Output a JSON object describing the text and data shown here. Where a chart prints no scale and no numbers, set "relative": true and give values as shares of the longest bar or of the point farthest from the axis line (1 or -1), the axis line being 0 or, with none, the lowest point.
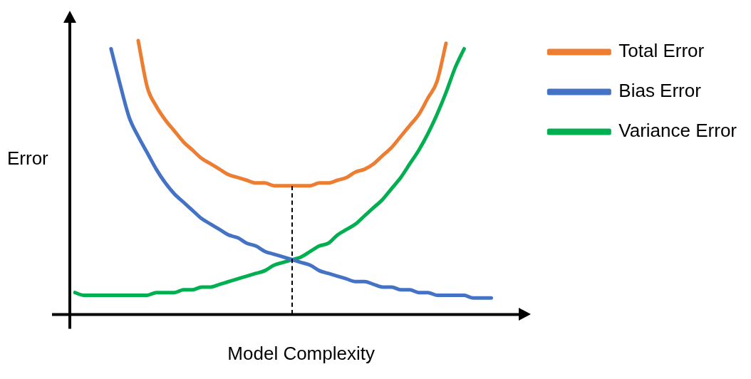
{
  "chart_data": {
    "type": "line",
    "relative": true,
    "xlabel": "Model Complexity",
    "ylabel": "Error",
    "legend": "top right",
    "grid": false,
    "marker": "none",
    "categories": [
      null,
      null,
      null,
      null,
      null,
      null,
      null,
      null,
      null,
      null,
      null,
      null,
      null,
      null,
      null,
      null,
      null,
      null,
      null,
      null,
      null,
      null,
      null,
      null,
      null,
      null,
      null,
      null,
      null,
      null,
      null,
      null,
      null,
      null,
      null,
      null,
      null,
      null,
      null,
      null,
      null,
      null,
      null,
      null,
      null,
      null,
      null,
      null,
      null,
      null,
      null
    ],
    "series": [
      {
        "name": "Total Error",
        "color": "#ed7d31",
        "values": [
          null,
          null,
          null,
          null,
          null,
          null,
          null,
          1.0,
          0.83,
          0.76,
          0.71,
          0.67,
          0.63,
          0.6,
          0.57,
          0.55,
          0.53,
          0.51,
          0.5,
          0.49,
          0.48,
          0.48,
          0.47,
          0.47,
          0.47,
          0.47,
          0.47,
          0.48,
          0.48,
          0.49,
          0.5,
          0.52,
          0.53,
          0.55,
          0.58,
          0.61,
          0.65,
          0.69,
          0.73,
          0.79,
          0.85,
          0.99,
          null,
          null,
          null,
          null,
          null,
          null,
          null,
          null,
          null
        ]
      },
      {
        "name": "Bias Error",
        "color": "#4472c4",
        "values": [
          null,
          null,
          null,
          null,
          0.97,
          0.84,
          0.72,
          0.65,
          0.59,
          0.53,
          0.48,
          0.44,
          0.41,
          0.38,
          0.35,
          0.33,
          0.31,
          0.29,
          0.28,
          0.26,
          0.25,
          0.23,
          0.22,
          0.21,
          0.2,
          0.19,
          0.18,
          0.16,
          0.15,
          0.14,
          0.13,
          0.12,
          0.12,
          0.11,
          0.1,
          0.1,
          0.09,
          0.09,
          0.08,
          0.08,
          0.07,
          0.07,
          0.07,
          0.07,
          0.06,
          0.06,
          0.06,
          null,
          null,
          null,
          null
        ]
      },
      {
        "name": "Variance Error",
        "color": "#00b050",
        "values": [
          0.08,
          0.07,
          0.07,
          0.07,
          0.07,
          0.07,
          0.07,
          0.07,
          0.07,
          0.08,
          0.08,
          0.08,
          0.09,
          0.09,
          0.1,
          0.1,
          0.11,
          0.12,
          0.13,
          0.14,
          0.15,
          0.16,
          0.18,
          0.19,
          0.2,
          0.21,
          0.23,
          0.25,
          0.26,
          0.29,
          0.31,
          0.33,
          0.36,
          0.39,
          0.42,
          0.46,
          0.5,
          0.55,
          0.6,
          0.66,
          0.73,
          0.81,
          0.9,
          0.97,
          null,
          null,
          null,
          null,
          null,
          null,
          null
        ]
      }
    ]
  }
}
